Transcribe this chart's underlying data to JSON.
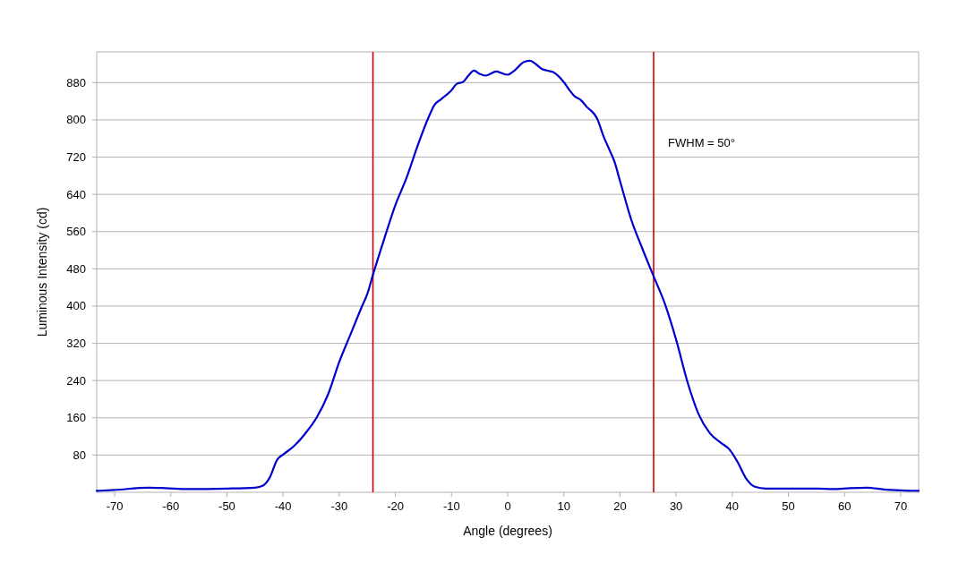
{
  "chart_data": {
    "type": "line",
    "xlabel": "Angle (degrees)",
    "ylabel": "Luminous Intensity (cd)",
    "xlim": [
      -73.2,
      73.2
    ],
    "xticks": [
      -70,
      -60,
      -50,
      -40,
      -30,
      -20,
      -10,
      0,
      10,
      20,
      30,
      40,
      50,
      60,
      70
    ],
    "ylim": [
      0,
      946
    ],
    "yticks": [
      80,
      160,
      240,
      320,
      400,
      480,
      560,
      640,
      720,
      800,
      880
    ],
    "grid": "y",
    "marker": "none",
    "line_style": "solid",
    "ref_lines": [
      {
        "axis": "x",
        "value": -24,
        "color": "#d40000"
      },
      {
        "axis": "x",
        "value": 26,
        "color": "#d40000"
      }
    ],
    "annotations": [
      "FWHM = 50°"
    ],
    "series": [
      {
        "color": "#0000cc",
        "x": [
          -73.2,
          -70,
          -64,
          -61,
          -57,
          -50,
          -45,
          -43.5,
          -42.5,
          -41,
          -40,
          -38,
          -36,
          -34,
          -32,
          -30,
          -28,
          -26,
          -25,
          -24,
          -22,
          -20,
          -18,
          -16,
          -14,
          -13,
          -12,
          -10,
          -9,
          -8,
          -7,
          -6,
          -5,
          -4,
          -2,
          -1,
          0,
          1,
          3,
          4,
          5,
          6,
          7,
          8,
          10,
          11,
          12,
          13,
          14,
          16,
          17,
          18,
          19,
          20,
          22,
          24,
          26,
          28,
          30,
          32,
          34,
          36,
          38,
          39.5,
          41,
          42.5,
          44,
          46,
          50,
          55,
          58,
          61,
          64,
          67,
          70,
          73.2
        ],
        "values": [
          3,
          5,
          10,
          9,
          7,
          8,
          10,
          15,
          29,
          71,
          81,
          100,
          127,
          161,
          210,
          280,
          339,
          398,
          426,
          467,
          544,
          617,
          676,
          746,
          808,
          833,
          843,
          864,
          878,
          881,
          895,
          906,
          899,
          895,
          904,
          900,
          897,
          904,
          925,
          927,
          920,
          910,
          906,
          903,
          881,
          864,
          850,
          843,
          829,
          801,
          767,
          739,
          711,
          669,
          586,
          523,
          464,
          405,
          328,
          238,
          168,
          127,
          106,
          92,
          64,
          29,
          12,
          8,
          8,
          8,
          7,
          9,
          10,
          6,
          4,
          3
        ]
      }
    ]
  }
}
